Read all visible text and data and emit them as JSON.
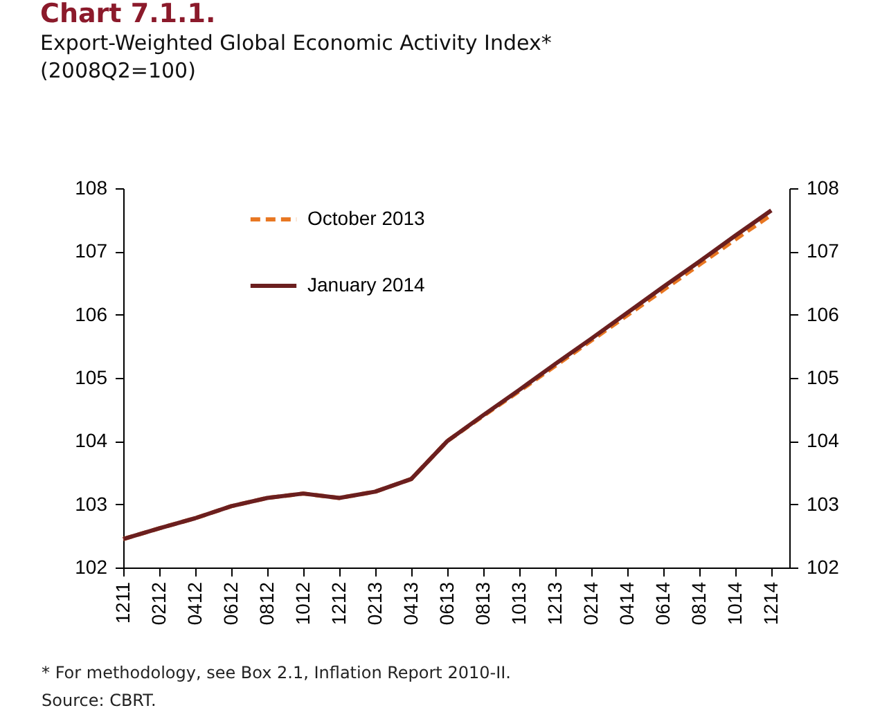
{
  "chart_data": {
    "type": "line",
    "title": "Chart 7.1.1.",
    "subtitle": "Export-Weighted Global Economic Activity Index*\n(2008Q2=100)",
    "categories": [
      "1211",
      "0212",
      "0412",
      "0612",
      "0812",
      "1012",
      "1212",
      "0213",
      "0413",
      "0613",
      "0813",
      "1013",
      "1213",
      "0214",
      "0414",
      "0614",
      "0814",
      "1014",
      "1214"
    ],
    "series": [
      {
        "name": "October 2013",
        "color": "#e87722",
        "line_style": "dashed",
        "values": [
          102.45,
          102.62,
          102.78,
          102.97,
          103.1,
          103.17,
          103.1,
          103.2,
          103.4,
          104.0,
          104.4,
          104.79,
          105.19,
          105.59,
          105.99,
          106.39,
          106.79,
          107.19,
          107.58
        ]
      },
      {
        "name": "January 2014",
        "color": "#6b1f1f",
        "line_style": "solid",
        "values": [
          102.45,
          102.62,
          102.78,
          102.97,
          103.1,
          103.17,
          103.1,
          103.2,
          103.4,
          104.0,
          104.41,
          104.81,
          105.22,
          105.62,
          106.03,
          106.44,
          106.84,
          107.25,
          107.65
        ]
      }
    ],
    "ylim": [
      102,
      108
    ],
    "yticks": [
      102,
      103,
      104,
      105,
      106,
      107,
      108
    ],
    "y2lim": [
      102,
      108
    ],
    "y2ticks": [
      102,
      103,
      104,
      105,
      106,
      107,
      108
    ],
    "grid": false,
    "legend": "top",
    "annotations": [
      "* For methodology, see Box 2.1, Inflation Report 2010-II.",
      "Source: CBRT."
    ]
  }
}
